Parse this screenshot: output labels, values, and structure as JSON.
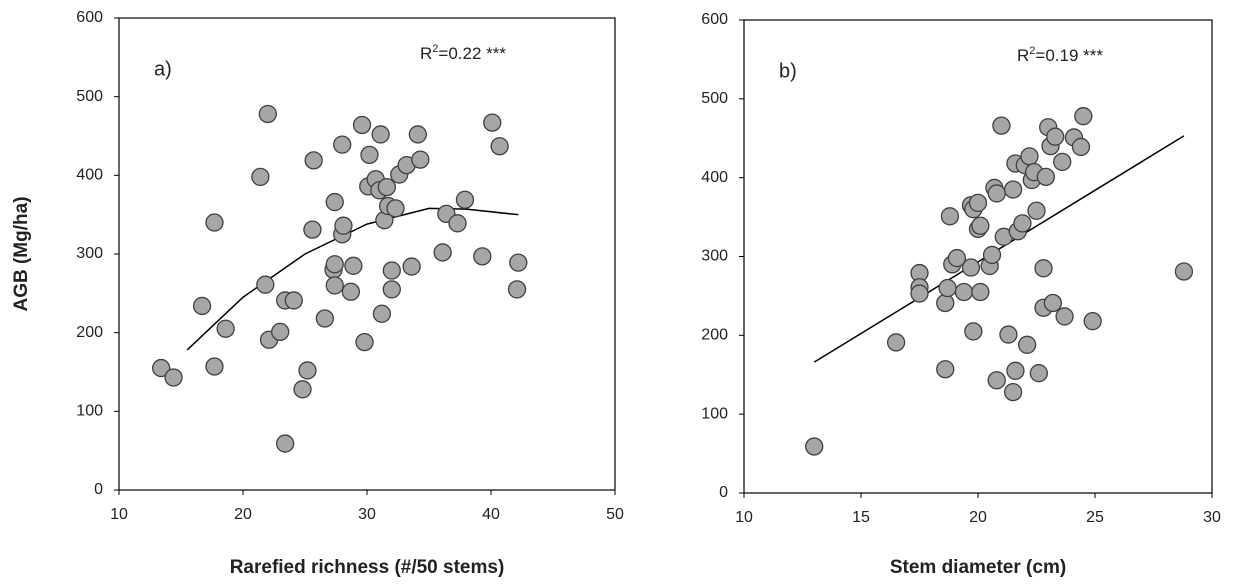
{
  "chart_data": [
    {
      "type": "scatter",
      "label": "a)",
      "annotation": {
        "base": "R",
        "sup": "2",
        "rest": "=0.22 ***"
      },
      "xlabel": "Rarefied richness (#/50 stems)",
      "ylabel": "AGB (Mg/ha)",
      "xlim": [
        10,
        50
      ],
      "xticks": [
        10,
        20,
        30,
        40,
        50
      ],
      "ylim": [
        0,
        600
      ],
      "yticks": [
        0,
        100,
        200,
        300,
        400,
        500,
        600
      ],
      "color": "#a6a6a6",
      "x": [
        13.4,
        14.4,
        17.7,
        16.7,
        17.7,
        18.6,
        22.0,
        21.4,
        21.8,
        22.1,
        23.0,
        23.4,
        24.1,
        23.4,
        24.8,
        25.2,
        25.6,
        25.7,
        26.6,
        27.3,
        27.4,
        27.4,
        27.4,
        28.0,
        28.1,
        28.0,
        28.7,
        28.9,
        29.6,
        29.8,
        30.1,
        30.2,
        30.7,
        31.0,
        31.1,
        31.2,
        31.4,
        31.6,
        31.7,
        32.0,
        32.0,
        32.3,
        32.6,
        33.2,
        33.6,
        34.1,
        34.3,
        36.1,
        36.4,
        37.3,
        37.9,
        39.3,
        40.1,
        40.7,
        42.2,
        42.1
      ],
      "values": [
        155,
        143,
        157,
        234,
        340,
        205,
        478,
        398,
        261,
        191,
        201,
        241,
        241,
        59,
        128,
        152,
        331,
        419,
        218,
        280,
        287,
        366,
        260,
        325,
        336,
        439,
        252,
        285,
        464,
        188,
        386,
        426,
        395,
        381,
        452,
        224,
        343,
        385,
        361,
        279,
        255,
        358,
        401,
        413,
        284,
        452,
        420,
        302,
        351,
        339,
        369,
        297,
        467,
        437,
        289,
        255
      ],
      "fit": {
        "x": [
          15.5,
          20,
          25,
          30,
          35,
          38,
          42.2
        ],
        "y": [
          178,
          245,
          300,
          338,
          358,
          357,
          350
        ]
      }
    },
    {
      "type": "scatter",
      "label": "b)",
      "annotation": {
        "base": "R",
        "sup": "2",
        "rest": "=0.19 ***"
      },
      "xlabel": "Stem diameter (cm)",
      "xlim": [
        10,
        30
      ],
      "xticks": [
        10,
        15,
        20,
        25,
        30
      ],
      "ylim": [
        0,
        600
      ],
      "yticks": [
        0,
        100,
        200,
        300,
        400,
        500,
        600
      ],
      "color": "#a6a6a6",
      "x": [
        13.0,
        16.5,
        17.5,
        17.5,
        17.5,
        18.6,
        18.6,
        18.7,
        18.8,
        18.9,
        19.1,
        19.4,
        19.7,
        19.7,
        19.8,
        19.8,
        20.0,
        20.0,
        20.1,
        20.1,
        20.5,
        20.6,
        20.7,
        20.8,
        20.8,
        21.0,
        21.1,
        21.3,
        21.5,
        21.5,
        21.6,
        21.6,
        21.7,
        21.9,
        22.0,
        22.1,
        22.2,
        22.3,
        22.4,
        22.5,
        22.6,
        22.8,
        22.8,
        22.9,
        23.0,
        23.1,
        23.2,
        23.3,
        23.6,
        23.7,
        24.1,
        24.4,
        24.5,
        24.9,
        28.8
      ],
      "values": [
        59,
        191,
        279,
        261,
        253,
        157,
        241,
        260,
        351,
        290,
        298,
        255,
        365,
        286,
        205,
        360,
        368,
        335,
        339,
        255,
        288,
        302,
        387,
        143,
        380,
        466,
        325,
        201,
        385,
        128,
        155,
        418,
        332,
        342,
        416,
        188,
        427,
        397,
        407,
        358,
        152,
        285,
        235,
        401,
        464,
        440,
        241,
        452,
        420,
        224,
        451,
        439,
        478,
        218,
        281
      ],
      "fit": {
        "x": [
          13.0,
          28.8
        ],
        "y": [
          166,
          453
        ]
      }
    }
  ]
}
